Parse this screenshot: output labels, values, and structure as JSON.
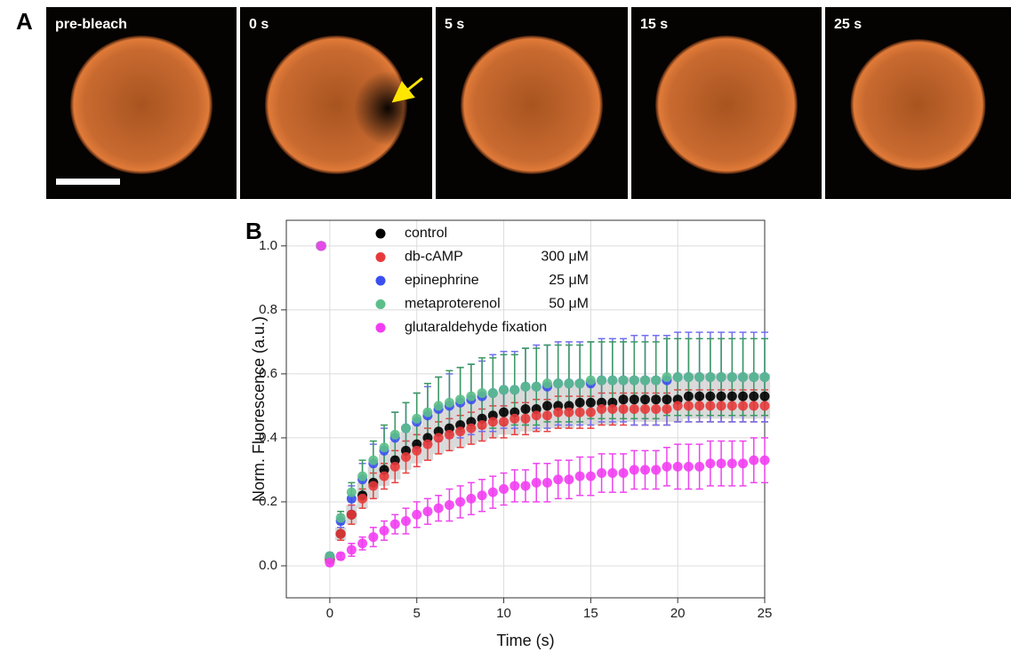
{
  "panel_labels": [
    "A",
    "B"
  ],
  "images": [
    "pre-bleach",
    "0 s",
    "5 s",
    "15 s",
    "25 s"
  ],
  "chart_data": {
    "type": "scatter",
    "x_label": "Time (s)",
    "y_label": "Norm. Fluorescence (a.u.)",
    "xlim": [
      -2.5,
      25
    ],
    "ylim": [
      -0.1,
      1.08
    ],
    "xticks": [
      0,
      5,
      10,
      15,
      20,
      25
    ],
    "yticks": [
      {
        "value": 0,
        "label": "0.0"
      },
      0.2,
      0.4,
      0.6,
      0.8,
      {
        "value": 1,
        "label": "1.0"
      }
    ],
    "grid": true,
    "x": [
      -0.5,
      0,
      0.625,
      1.25,
      1.875,
      2.5,
      3.125,
      3.75,
      4.375,
      5,
      5.625,
      6.25,
      6.875,
      7.5,
      8.125,
      8.75,
      9.375,
      10,
      10.625,
      11.25,
      11.875,
      12.5,
      13.125,
      13.75,
      14.375,
      15,
      15.625,
      16.25,
      16.875,
      17.5,
      18.125,
      18.75,
      19.375,
      20,
      20.625,
      21.25,
      21.875,
      22.5,
      23.125,
      23.75,
      24.375,
      25
    ],
    "series": [
      {
        "name": "control",
        "color": "#000000",
        "error_style": "band",
        "error_color": "#d9d9d9",
        "values": [
          1.0,
          0.02,
          0.1,
          0.16,
          0.22,
          0.26,
          0.3,
          0.33,
          0.36,
          0.38,
          0.4,
          0.42,
          0.43,
          0.44,
          0.45,
          0.46,
          0.47,
          0.48,
          0.48,
          0.49,
          0.49,
          0.5,
          0.5,
          0.5,
          0.51,
          0.51,
          0.51,
          0.51,
          0.52,
          0.52,
          0.52,
          0.52,
          0.52,
          0.52,
          0.53,
          0.53,
          0.53,
          0.53,
          0.53,
          0.53,
          0.53,
          0.53
        ],
        "errors": [
          0.01,
          0.01,
          0.02,
          0.03,
          0.04,
          0.05,
          0.05,
          0.06,
          0.06,
          0.06,
          0.07,
          0.07,
          0.07,
          0.07,
          0.07,
          0.07,
          0.07,
          0.07,
          0.07,
          0.07,
          0.07,
          0.07,
          0.07,
          0.07,
          0.07,
          0.07,
          0.07,
          0.07,
          0.07,
          0.07,
          0.07,
          0.07,
          0.07,
          0.07,
          0.07,
          0.07,
          0.07,
          0.07,
          0.07,
          0.07,
          0.07,
          0.07
        ]
      },
      {
        "name": "db-cAMP",
        "concentration": "300 μM",
        "color": "#e8393a",
        "error_style": "bars",
        "error_color": "#e84040",
        "values": [
          1.0,
          0.02,
          0.1,
          0.16,
          0.21,
          0.25,
          0.28,
          0.31,
          0.34,
          0.36,
          0.38,
          0.4,
          0.41,
          0.42,
          0.43,
          0.44,
          0.45,
          0.45,
          0.46,
          0.46,
          0.47,
          0.47,
          0.48,
          0.48,
          0.48,
          0.48,
          0.49,
          0.49,
          0.49,
          0.49,
          0.49,
          0.49,
          0.49,
          0.5,
          0.5,
          0.5,
          0.5,
          0.5,
          0.5,
          0.5,
          0.5,
          0.5
        ],
        "errors": [
          0.01,
          0.01,
          0.02,
          0.03,
          0.03,
          0.04,
          0.04,
          0.05,
          0.05,
          0.05,
          0.05,
          0.05,
          0.05,
          0.05,
          0.05,
          0.05,
          0.05,
          0.05,
          0.05,
          0.05,
          0.05,
          0.05,
          0.05,
          0.05,
          0.05,
          0.05,
          0.05,
          0.05,
          0.05,
          0.05,
          0.05,
          0.05,
          0.05,
          0.05,
          0.05,
          0.05,
          0.05,
          0.05,
          0.05,
          0.05,
          0.05,
          0.05
        ]
      },
      {
        "name": "epinephrine",
        "concentration": "25 μM",
        "color": "#3b4ff0",
        "error_style": "bars",
        "error_color": "#7070ee",
        "values": [
          1.0,
          0.03,
          0.14,
          0.21,
          0.27,
          0.32,
          0.36,
          0.4,
          0.43,
          0.45,
          0.47,
          0.49,
          0.5,
          0.51,
          0.52,
          0.53,
          0.54,
          0.55,
          0.55,
          0.56,
          0.56,
          0.56,
          0.57,
          0.57,
          0.57,
          0.57,
          0.58,
          0.58,
          0.58,
          0.58,
          0.58,
          0.58,
          0.58,
          0.59,
          0.59,
          0.59,
          0.59,
          0.59,
          0.59,
          0.59,
          0.59,
          0.59
        ],
        "errors": [
          0.01,
          0.01,
          0.02,
          0.04,
          0.05,
          0.06,
          0.07,
          0.08,
          0.08,
          0.09,
          0.09,
          0.1,
          0.1,
          0.11,
          0.11,
          0.11,
          0.12,
          0.12,
          0.12,
          0.12,
          0.13,
          0.13,
          0.13,
          0.13,
          0.13,
          0.13,
          0.13,
          0.13,
          0.13,
          0.14,
          0.14,
          0.14,
          0.14,
          0.14,
          0.14,
          0.14,
          0.14,
          0.14,
          0.14,
          0.14,
          0.14,
          0.14
        ]
      },
      {
        "name": "metaproterenol",
        "concentration": "50 μM",
        "color": "#5cbf8a",
        "error_style": "bars",
        "error_color": "#3a9a60",
        "values": [
          1.0,
          0.03,
          0.15,
          0.23,
          0.28,
          0.33,
          0.37,
          0.41,
          0.43,
          0.46,
          0.48,
          0.5,
          0.51,
          0.52,
          0.53,
          0.54,
          0.54,
          0.55,
          0.55,
          0.56,
          0.56,
          0.57,
          0.57,
          0.57,
          0.57,
          0.58,
          0.58,
          0.58,
          0.58,
          0.58,
          0.58,
          0.58,
          0.59,
          0.59,
          0.59,
          0.59,
          0.59,
          0.59,
          0.59,
          0.59,
          0.59,
          0.59
        ],
        "errors": [
          0.01,
          0.01,
          0.02,
          0.03,
          0.05,
          0.06,
          0.07,
          0.07,
          0.08,
          0.08,
          0.09,
          0.09,
          0.1,
          0.1,
          0.1,
          0.11,
          0.11,
          0.11,
          0.11,
          0.12,
          0.12,
          0.12,
          0.12,
          0.12,
          0.12,
          0.12,
          0.12,
          0.12,
          0.12,
          0.12,
          0.12,
          0.12,
          0.12,
          0.12,
          0.12,
          0.12,
          0.12,
          0.12,
          0.12,
          0.12,
          0.12,
          0.12
        ]
      },
      {
        "name": "glutaraldehyde fixation",
        "color": "#f23ef2",
        "error_style": "bars",
        "error_color": "#ee44ee",
        "values": [
          1.0,
          0.01,
          0.03,
          0.05,
          0.07,
          0.09,
          0.11,
          0.13,
          0.14,
          0.16,
          0.17,
          0.18,
          0.19,
          0.2,
          0.21,
          0.22,
          0.23,
          0.24,
          0.25,
          0.25,
          0.26,
          0.26,
          0.27,
          0.27,
          0.28,
          0.28,
          0.29,
          0.29,
          0.29,
          0.3,
          0.3,
          0.3,
          0.31,
          0.31,
          0.31,
          0.31,
          0.32,
          0.32,
          0.32,
          0.32,
          0.33,
          0.33
        ],
        "errors": [
          0.01,
          0.01,
          0.01,
          0.02,
          0.02,
          0.03,
          0.03,
          0.03,
          0.04,
          0.04,
          0.04,
          0.04,
          0.05,
          0.05,
          0.05,
          0.05,
          0.05,
          0.05,
          0.05,
          0.05,
          0.06,
          0.06,
          0.06,
          0.06,
          0.06,
          0.06,
          0.06,
          0.06,
          0.06,
          0.06,
          0.06,
          0.06,
          0.06,
          0.07,
          0.07,
          0.07,
          0.07,
          0.07,
          0.07,
          0.07,
          0.07,
          0.07
        ]
      }
    ]
  }
}
